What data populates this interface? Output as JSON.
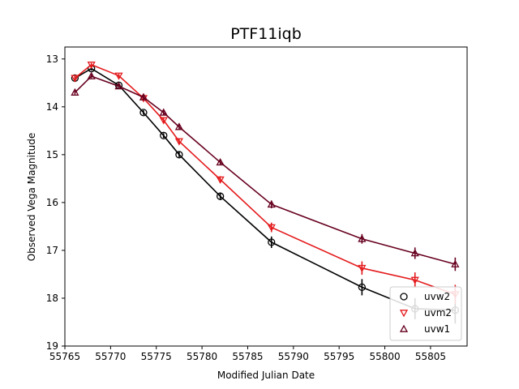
{
  "chart_data": {
    "type": "line",
    "title": "PTF11iqb",
    "xlabel": "Modified Julian Date",
    "ylabel": "Observed Vega Magnitude",
    "xlim": [
      55765,
      55809
    ],
    "ylim": [
      19,
      12.75
    ],
    "y_inverted": true,
    "xticks": [
      55765,
      55770,
      55775,
      55780,
      55785,
      55790,
      55795,
      55800,
      55805
    ],
    "yticks": [
      13,
      14,
      15,
      16,
      17,
      18,
      19
    ],
    "grid": false,
    "legend_position": "lower-right",
    "series": [
      {
        "name": "uvw2",
        "color": "#000000",
        "marker": "circle",
        "x": [
          55766.1,
          55767.9,
          55770.9,
          55773.6,
          55775.8,
          55777.5,
          55782.0,
          55787.6,
          55797.5,
          55803.3,
          55807.7
        ],
        "y": [
          13.4,
          13.2,
          13.55,
          14.12,
          14.6,
          15.0,
          15.87,
          16.83,
          17.77,
          18.22,
          18.25
        ],
        "err": [
          0.04,
          0.04,
          0.04,
          0.05,
          0.05,
          0.06,
          0.08,
          0.12,
          0.17,
          0.22,
          0.28
        ]
      },
      {
        "name": "uvm2",
        "color": "#e41a1c",
        "marker": "triangle-down",
        "x": [
          55766.1,
          55767.9,
          55770.9,
          55773.6,
          55775.8,
          55777.5,
          55782.0,
          55787.6,
          55797.5,
          55803.3,
          55807.7
        ],
        "y": [
          13.4,
          13.12,
          13.35,
          13.82,
          14.28,
          14.72,
          15.52,
          16.52,
          17.37,
          17.62,
          17.92
        ],
        "err": [
          0.04,
          0.04,
          0.04,
          0.05,
          0.05,
          0.06,
          0.07,
          0.1,
          0.14,
          0.16,
          0.2
        ]
      },
      {
        "name": "uvw1",
        "color": "#67001f",
        "marker": "triangle-up",
        "x": [
          55766.1,
          55767.9,
          55770.9,
          55773.6,
          55775.8,
          55777.5,
          55782.0,
          55787.6,
          55797.5,
          55803.3,
          55807.7
        ],
        "y": [
          13.7,
          13.36,
          13.57,
          13.8,
          14.12,
          14.42,
          15.16,
          16.04,
          16.76,
          17.06,
          17.29
        ],
        "err": [
          0.04,
          0.04,
          0.04,
          0.05,
          0.05,
          0.05,
          0.06,
          0.08,
          0.1,
          0.12,
          0.14
        ]
      }
    ]
  }
}
